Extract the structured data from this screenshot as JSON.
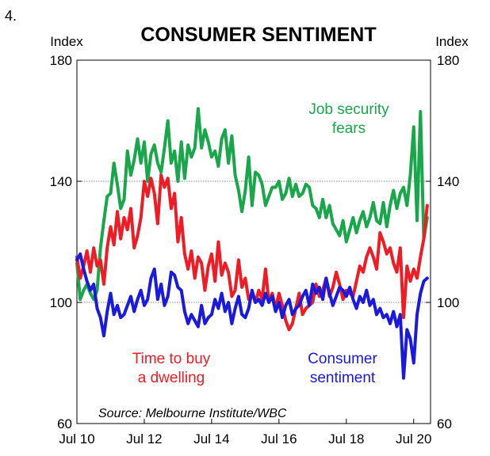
{
  "chart_number": "4.",
  "chart_data": {
    "type": "line",
    "title": "CONSUMER SENTIMENT",
    "ylabel_left": "Index",
    "ylabel_right": "Index",
    "ylim": [
      60,
      180
    ],
    "yticks": [
      60,
      100,
      140,
      180
    ],
    "xlim": [
      2010.5,
      2021.0
    ],
    "xticks": [
      {
        "value": 2010.5,
        "label": "Jul 10"
      },
      {
        "value": 2012.5,
        "label": "Jul 12"
      },
      {
        "value": 2014.5,
        "label": "Jul 14"
      },
      {
        "value": 2016.5,
        "label": "Jul 16"
      },
      {
        "value": 2018.5,
        "label": "Jul 18"
      },
      {
        "value": 2020.5,
        "label": "Jul 20"
      }
    ],
    "gridlines_y": [
      100,
      140
    ],
    "source": "Source: Melbourne Institute/WBC",
    "series": [
      {
        "name": "Job security fears",
        "label_lines": [
          "Job security",
          "fears"
        ],
        "color": "#1aa64a",
        "x": [
          2010.5,
          2010.6,
          2010.7,
          2010.8,
          2010.9,
          2011.0,
          2011.1,
          2011.2,
          2011.3,
          2011.4,
          2011.5,
          2011.6,
          2011.7,
          2011.8,
          2011.9,
          2012.0,
          2012.1,
          2012.2,
          2012.3,
          2012.4,
          2012.5,
          2012.6,
          2012.7,
          2012.8,
          2012.9,
          2013.0,
          2013.1,
          2013.2,
          2013.3,
          2013.4,
          2013.5,
          2013.6,
          2013.7,
          2013.8,
          2013.9,
          2014.0,
          2014.1,
          2014.2,
          2014.3,
          2014.4,
          2014.5,
          2014.6,
          2014.7,
          2014.8,
          2014.9,
          2015.0,
          2015.1,
          2015.2,
          2015.3,
          2015.4,
          2015.5,
          2015.6,
          2015.7,
          2015.8,
          2015.9,
          2016.0,
          2016.1,
          2016.2,
          2016.3,
          2016.4,
          2016.5,
          2016.6,
          2016.7,
          2016.8,
          2016.9,
          2017.0,
          2017.1,
          2017.2,
          2017.3,
          2017.4,
          2017.5,
          2017.6,
          2017.7,
          2017.8,
          2017.9,
          2018.0,
          2018.1,
          2018.2,
          2018.3,
          2018.4,
          2018.5,
          2018.6,
          2018.7,
          2018.8,
          2018.9,
          2019.0,
          2019.1,
          2019.2,
          2019.3,
          2019.4,
          2019.5,
          2019.6,
          2019.7,
          2019.8,
          2019.9,
          2020.0,
          2020.1,
          2020.2,
          2020.3,
          2020.4,
          2020.5,
          2020.6,
          2020.7,
          2020.8,
          2020.9
        ],
        "values": [
          113,
          101,
          104,
          106,
          103,
          101,
          104,
          118,
          127,
          135,
          136,
          146,
          139,
          131,
          134,
          150,
          142,
          147,
          154,
          146,
          153,
          140,
          149,
          152,
          146,
          143,
          151,
          160,
          146,
          150,
          140,
          153,
          141,
          152,
          148,
          151,
          164,
          151,
          157,
          153,
          148,
          150,
          145,
          154,
          157,
          146,
          155,
          142,
          137,
          130,
          137,
          148,
          132,
          143,
          142,
          139,
          132,
          135,
          138,
          138,
          140,
          134,
          136,
          141,
          135,
          139,
          135,
          136,
          139,
          138,
          132,
          131,
          128,
          134,
          128,
          132,
          126,
          124,
          122,
          127,
          120,
          124,
          128,
          123,
          127,
          130,
          125,
          128,
          133,
          127,
          126,
          133,
          125,
          132,
          137,
          131,
          136,
          138,
          132,
          142,
          158,
          127,
          163,
          121,
          128
        ]
      },
      {
        "name": "Time to buy a dwelling",
        "label_lines": [
          "Time to buy",
          "a dwelling"
        ],
        "color": "#ee1c25",
        "x": [
          2010.5,
          2010.6,
          2010.7,
          2010.8,
          2010.9,
          2011.0,
          2011.1,
          2011.2,
          2011.3,
          2011.4,
          2011.5,
          2011.6,
          2011.7,
          2011.8,
          2011.9,
          2012.0,
          2012.1,
          2012.2,
          2012.3,
          2012.4,
          2012.5,
          2012.6,
          2012.7,
          2012.8,
          2012.9,
          2013.0,
          2013.1,
          2013.2,
          2013.3,
          2013.4,
          2013.5,
          2013.6,
          2013.7,
          2013.8,
          2013.9,
          2014.0,
          2014.1,
          2014.2,
          2014.3,
          2014.4,
          2014.5,
          2014.6,
          2014.7,
          2014.8,
          2014.9,
          2015.0,
          2015.1,
          2015.2,
          2015.3,
          2015.4,
          2015.5,
          2015.6,
          2015.7,
          2015.8,
          2015.9,
          2016.0,
          2016.1,
          2016.2,
          2016.3,
          2016.4,
          2016.5,
          2016.6,
          2016.7,
          2016.8,
          2016.9,
          2017.0,
          2017.1,
          2017.2,
          2017.3,
          2017.4,
          2017.5,
          2017.6,
          2017.7,
          2017.8,
          2017.9,
          2018.0,
          2018.1,
          2018.2,
          2018.3,
          2018.4,
          2018.5,
          2018.6,
          2018.7,
          2018.8,
          2018.9,
          2019.0,
          2019.1,
          2019.2,
          2019.3,
          2019.4,
          2019.5,
          2019.6,
          2019.7,
          2019.8,
          2019.9,
          2020.0,
          2020.1,
          2020.2,
          2020.3,
          2020.4,
          2020.5,
          2020.6,
          2020.7,
          2020.8,
          2020.9
        ],
        "values": [
          115,
          108,
          112,
          117,
          110,
          118,
          112,
          114,
          106,
          118,
          125,
          119,
          130,
          121,
          128,
          124,
          131,
          118,
          122,
          128,
          140,
          135,
          141,
          136,
          126,
          142,
          138,
          141,
          131,
          136,
          120,
          128,
          116,
          111,
          117,
          108,
          115,
          113,
          104,
          112,
          116,
          107,
          120,
          109,
          113,
          110,
          102,
          104,
          114,
          105,
          108,
          101,
          103,
          100,
          104,
          101,
          111,
          100,
          103,
          98,
          103,
          99,
          94,
          91,
          93,
          98,
          103,
          96,
          98,
          99,
          100,
          106,
          102,
          104,
          108,
          102,
          105,
          110,
          106,
          101,
          104,
          103,
          102,
          107,
          112,
          110,
          115,
          118,
          115,
          111,
          123,
          120,
          116,
          118,
          113,
          110,
          118,
          95,
          112,
          107,
          111,
          108,
          115,
          121,
          132
        ]
      },
      {
        "name": "Consumer sentiment",
        "label_lines": [
          "Consumer",
          "sentiment"
        ],
        "color": "#1a1adf",
        "x": [
          2010.5,
          2010.6,
          2010.7,
          2010.8,
          2010.9,
          2011.0,
          2011.1,
          2011.2,
          2011.3,
          2011.4,
          2011.5,
          2011.6,
          2011.7,
          2011.8,
          2011.9,
          2012.0,
          2012.1,
          2012.2,
          2012.3,
          2012.4,
          2012.5,
          2012.6,
          2012.7,
          2012.8,
          2012.9,
          2013.0,
          2013.1,
          2013.2,
          2013.3,
          2013.4,
          2013.5,
          2013.6,
          2013.7,
          2013.8,
          2013.9,
          2014.0,
          2014.1,
          2014.2,
          2014.3,
          2014.4,
          2014.5,
          2014.6,
          2014.7,
          2014.8,
          2014.9,
          2015.0,
          2015.1,
          2015.2,
          2015.3,
          2015.4,
          2015.5,
          2015.6,
          2015.7,
          2015.8,
          2015.9,
          2016.0,
          2016.1,
          2016.2,
          2016.3,
          2016.4,
          2016.5,
          2016.6,
          2016.7,
          2016.8,
          2016.9,
          2017.0,
          2017.1,
          2017.2,
          2017.3,
          2017.4,
          2017.5,
          2017.6,
          2017.7,
          2017.8,
          2017.9,
          2018.0,
          2018.1,
          2018.2,
          2018.3,
          2018.4,
          2018.5,
          2018.6,
          2018.7,
          2018.8,
          2018.9,
          2019.0,
          2019.1,
          2019.2,
          2019.3,
          2019.4,
          2019.5,
          2019.6,
          2019.7,
          2019.8,
          2019.9,
          2020.0,
          2020.1,
          2020.2,
          2020.3,
          2020.4,
          2020.5,
          2020.6,
          2020.7,
          2020.8,
          2020.9
        ],
        "values": [
          114,
          116,
          111,
          107,
          104,
          106,
          98,
          95,
          89,
          97,
          103,
          96,
          99,
          95,
          96,
          99,
          102,
          97,
          101,
          104,
          99,
          101,
          108,
          111,
          101,
          106,
          99,
          102,
          110,
          109,
          105,
          104,
          97,
          93,
          96,
          94,
          92,
          99,
          93,
          95,
          96,
          101,
          98,
          103,
          97,
          100,
          93,
          98,
          102,
          96,
          95,
          98,
          104,
          100,
          101,
          99,
          103,
          100,
          102,
          97,
          100,
          95,
          99,
          101,
          96,
          98,
          99,
          102,
          104,
          99,
          106,
          103,
          105,
          101,
          108,
          103,
          99,
          102,
          105,
          104,
          102,
          105,
          101,
          98,
          102,
          100,
          104,
          99,
          101,
          96,
          98,
          95,
          96,
          93,
          97,
          92,
          96,
          75,
          91,
          88,
          80,
          96,
          103,
          107,
          108
        ]
      }
    ]
  }
}
